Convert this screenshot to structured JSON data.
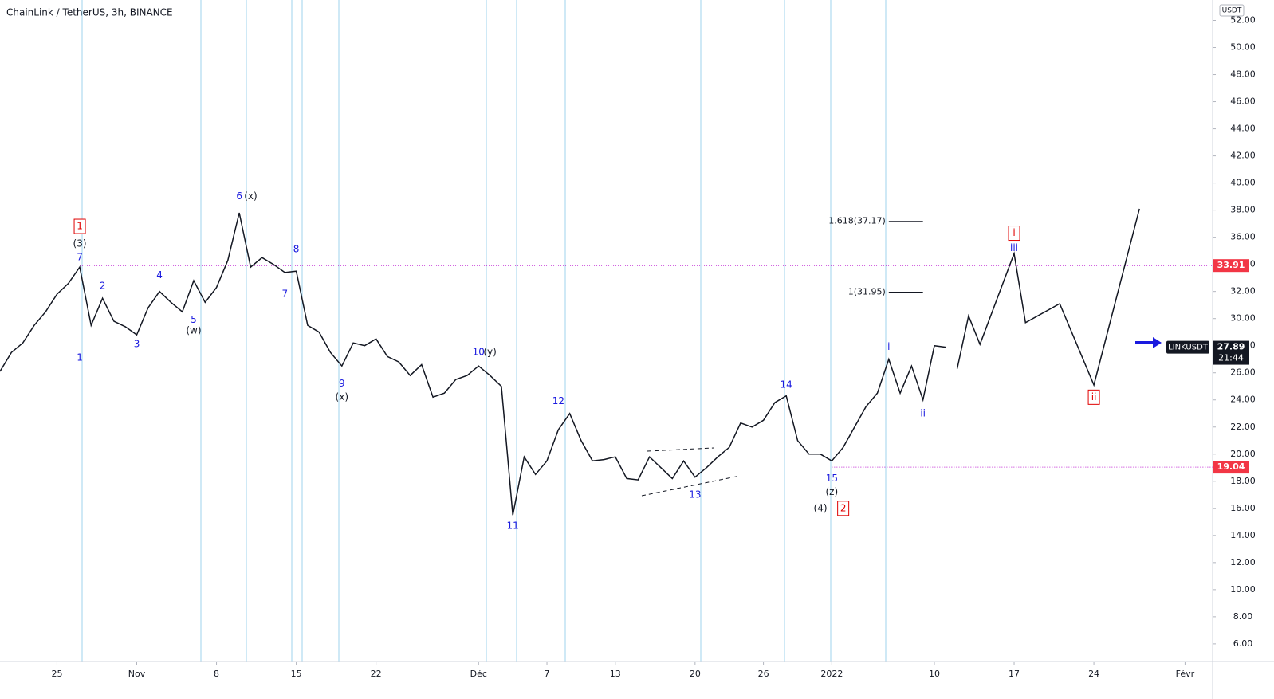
{
  "chart_data": {
    "type": "line",
    "title": "ChainLink / TetherUS, 3h, BINANCE",
    "currency": "USDT",
    "x": [
      "2021-10-20",
      "2021-10-21",
      "2021-10-22",
      "2021-10-23",
      "2021-10-24",
      "2021-10-25",
      "2021-10-26",
      "2021-10-27",
      "2021-10-28",
      "2021-10-29",
      "2021-10-30",
      "2021-10-31",
      "2021-11-01",
      "2021-11-02",
      "2021-11-03",
      "2021-11-04",
      "2021-11-05",
      "2021-11-06",
      "2021-11-07",
      "2021-11-08",
      "2021-11-09",
      "2021-11-10",
      "2021-11-11",
      "2021-11-12",
      "2021-11-13",
      "2021-11-14",
      "2021-11-15",
      "2021-11-16",
      "2021-11-17",
      "2021-11-18",
      "2021-11-19",
      "2021-11-20",
      "2021-11-21",
      "2021-11-22",
      "2021-11-23",
      "2021-11-24",
      "2021-11-25",
      "2021-11-26",
      "2021-11-27",
      "2021-11-28",
      "2021-11-29",
      "2021-11-30",
      "2021-12-01",
      "2021-12-02",
      "2021-12-03",
      "2021-12-04",
      "2021-12-05",
      "2021-12-06",
      "2021-12-07",
      "2021-12-08",
      "2021-12-09",
      "2021-12-10",
      "2021-12-11",
      "2021-12-12",
      "2021-12-13",
      "2021-12-14",
      "2021-12-15",
      "2021-12-16",
      "2021-12-17",
      "2021-12-18",
      "2021-12-19",
      "2021-12-20",
      "2021-12-21",
      "2021-12-22",
      "2021-12-23",
      "2021-12-24",
      "2021-12-25",
      "2021-12-26",
      "2021-12-27",
      "2021-12-28",
      "2021-12-29",
      "2021-12-30",
      "2021-12-31",
      "2022-01-01",
      "2022-01-02",
      "2022-01-03",
      "2022-01-04",
      "2022-01-05",
      "2022-01-06",
      "2022-01-07",
      "2022-01-08",
      "2022-01-09",
      "2022-01-10",
      "2022-01-11"
    ],
    "series": [
      {
        "name": "LINKUSDT",
        "color": "#131722",
        "values": [
          26.1,
          27.5,
          28.2,
          29.5,
          30.5,
          31.8,
          32.6,
          33.8,
          29.5,
          31.5,
          29.8,
          29.4,
          28.8,
          30.8,
          32.0,
          31.2,
          30.5,
          32.8,
          31.2,
          32.3,
          34.3,
          37.8,
          33.8,
          34.5,
          34.0,
          33.4,
          33.5,
          29.5,
          29.0,
          27.5,
          26.5,
          28.2,
          28.0,
          28.5,
          27.2,
          26.8,
          25.8,
          26.6,
          24.2,
          24.5,
          25.5,
          25.8,
          26.5,
          25.8,
          25.0,
          15.5,
          19.8,
          18.5,
          19.5,
          21.8,
          23.0,
          21.0,
          19.5,
          19.6,
          19.8,
          18.2,
          18.1,
          19.8,
          19.0,
          18.2,
          19.5,
          18.3,
          19.0,
          19.8,
          20.5,
          22.3,
          22.0,
          22.5,
          23.8,
          24.3,
          21.0,
          20.0,
          20.0,
          19.5,
          20.5,
          22.0,
          23.5,
          24.5,
          27.0,
          24.5,
          26.5,
          24.0,
          28.0,
          27.89
        ]
      }
    ],
    "last_value": 27.89,
    "countdown": "21:44",
    "projection": {
      "color": "#131722",
      "x": [
        "2022-01-12",
        "2022-01-13",
        "2022-01-14",
        "2022-01-17",
        "2022-01-18",
        "2022-01-21",
        "2022-01-24",
        "2022-01-28"
      ],
      "values": [
        26.3,
        30.2,
        28.1,
        34.8,
        29.7,
        31.1,
        25.1,
        38.1
      ]
    },
    "levels": [
      {
        "value": 33.91,
        "from": "2021-10-27"
      },
      {
        "value": 19.04,
        "from": "2022-01-01"
      }
    ],
    "level_color": "#c026d3",
    "fib": {
      "from": "2022-01-06",
      "to": "2022-01-09",
      "levels": [
        {
          "value": 37.17,
          "label": "1.618(37.17)"
        },
        {
          "value": 31.95,
          "label": "1(31.95)"
        }
      ]
    },
    "annotations": [
      {
        "text": "1",
        "x": "2021-10-27",
        "y": 36.8,
        "color": "#e00000",
        "box": true
      },
      {
        "text": "(3)",
        "x": "2021-10-27",
        "y": 35.5,
        "color": "#131722"
      },
      {
        "text": "7",
        "x": "2021-10-27",
        "y": 34.5,
        "color": "#1a1adf"
      },
      {
        "text": "1",
        "x": "2021-10-27",
        "y": 27.1,
        "color": "#1a1adf"
      },
      {
        "text": "2",
        "x": "2021-10-29",
        "y": 32.4,
        "color": "#1a1adf"
      },
      {
        "text": "3",
        "x": "2021-11-01",
        "y": 28.1,
        "color": "#1a1adf"
      },
      {
        "text": "4",
        "x": "2021-11-03",
        "y": 33.2,
        "color": "#1a1adf"
      },
      {
        "text": "5",
        "x": "2021-11-06",
        "y": 29.9,
        "color": "#1a1adf"
      },
      {
        "text": "(w)",
        "x": "2021-11-06",
        "y": 29.1,
        "color": "#131722"
      },
      {
        "text": "6",
        "x": "2021-11-10",
        "y": 39.0,
        "color": "#1a1adf"
      },
      {
        "text": "(x)",
        "x": "2021-11-11",
        "y": 39.0,
        "color": "#131722"
      },
      {
        "text": "8",
        "x": "2021-11-15",
        "y": 35.1,
        "color": "#1a1adf"
      },
      {
        "text": "7",
        "x": "2021-11-14",
        "y": 31.8,
        "color": "#1a1adf"
      },
      {
        "text": "9",
        "x": "2021-11-19",
        "y": 25.2,
        "color": "#1a1adf"
      },
      {
        "text": "(x)",
        "x": "2021-11-19",
        "y": 24.2,
        "color": "#131722"
      },
      {
        "text": "10",
        "x": "2021-12-01",
        "y": 27.5,
        "color": "#1a1adf"
      },
      {
        "text": "(y)",
        "x": "2021-12-02",
        "y": 27.5,
        "color": "#131722"
      },
      {
        "text": "11",
        "x": "2021-12-04",
        "y": 14.7,
        "color": "#1a1adf"
      },
      {
        "text": "12",
        "x": "2021-12-08",
        "y": 23.9,
        "color": "#1a1adf"
      },
      {
        "text": "13",
        "x": "2021-12-20",
        "y": 17.0,
        "color": "#1a1adf"
      },
      {
        "text": "14",
        "x": "2021-12-28",
        "y": 25.1,
        "color": "#1a1adf"
      },
      {
        "text": "15",
        "x": "2022-01-01",
        "y": 18.2,
        "color": "#1a1adf"
      },
      {
        "text": "(z)",
        "x": "2022-01-01",
        "y": 17.2,
        "color": "#131722"
      },
      {
        "text": "(4)",
        "x": "2021-12-31",
        "y": 16.0,
        "color": "#131722"
      },
      {
        "text": "2",
        "x": "2022-01-02",
        "y": 16.0,
        "color": "#e00000",
        "box": true
      },
      {
        "text": "i",
        "x": "2022-01-06",
        "y": 27.9,
        "color": "#1a1adf"
      },
      {
        "text": "ii",
        "x": "2022-01-09",
        "y": 23.0,
        "color": "#1a1adf"
      },
      {
        "text": "i",
        "x": "2022-01-17",
        "y": 36.3,
        "color": "#e00000",
        "box": true
      },
      {
        "text": "iii",
        "x": "2022-01-17",
        "y": 35.2,
        "color": "#1a1adf"
      },
      {
        "text": "ii",
        "x": "2022-01-24",
        "y": 24.2,
        "color": "#e00000",
        "box": true
      }
    ],
    "xlim": [
      "2021-10-20",
      "2022-02-03"
    ],
    "xticks": [
      {
        "value": "2021-10-25",
        "label": "25"
      },
      {
        "value": "2021-11-01",
        "label": "Nov"
      },
      {
        "value": "2021-11-08",
        "label": "8"
      },
      {
        "value": "2021-11-15",
        "label": "15"
      },
      {
        "value": "2021-11-22",
        "label": "22"
      },
      {
        "value": "2021-12-01",
        "label": "Déc"
      },
      {
        "value": "2021-12-07",
        "label": "7"
      },
      {
        "value": "2021-12-13",
        "label": "13"
      },
      {
        "value": "2021-12-20",
        "label": "20"
      },
      {
        "value": "2021-12-26",
        "label": "26"
      },
      {
        "value": "2022-01-01",
        "label": "2022"
      },
      {
        "value": "2022-01-10",
        "label": "10"
      },
      {
        "value": "2022-01-17",
        "label": "17"
      },
      {
        "value": "2022-01-24",
        "label": "24"
      },
      {
        "value": "2022-02-01",
        "label": "Févr"
      }
    ],
    "ylim": [
      4.7,
      53.5
    ],
    "yticks": [
      {
        "value": 6,
        "label": "6.00"
      },
      {
        "value": 8,
        "label": "8.00"
      },
      {
        "value": 10,
        "label": "10.00"
      },
      {
        "value": 12,
        "label": "12.00"
      },
      {
        "value": 14,
        "label": "14.00"
      },
      {
        "value": 16,
        "label": "16.00"
      },
      {
        "value": 18,
        "label": "18.00"
      },
      {
        "value": 20,
        "label": "20.00"
      },
      {
        "value": 22,
        "label": "22.00"
      },
      {
        "value": 24,
        "label": "24.00"
      },
      {
        "value": 26,
        "label": "26.00"
      },
      {
        "value": 28,
        "label": "28.00"
      },
      {
        "value": 30,
        "label": "30.00"
      },
      {
        "value": 32,
        "label": "32.00"
      },
      {
        "value": 34,
        "label": "34.00"
      },
      {
        "value": 36,
        "label": "36.00"
      },
      {
        "value": 38,
        "label": "38.00"
      },
      {
        "value": 40,
        "label": "40.00"
      },
      {
        "value": 42,
        "label": "42.00"
      },
      {
        "value": 44,
        "label": "44.00"
      },
      {
        "value": 46,
        "label": "46.00"
      },
      {
        "value": 48,
        "label": "48.00"
      },
      {
        "value": 50,
        "label": "50.00"
      },
      {
        "value": 52,
        "label": "52.00"
      }
    ],
    "level_label_color": "#f23645"
  }
}
